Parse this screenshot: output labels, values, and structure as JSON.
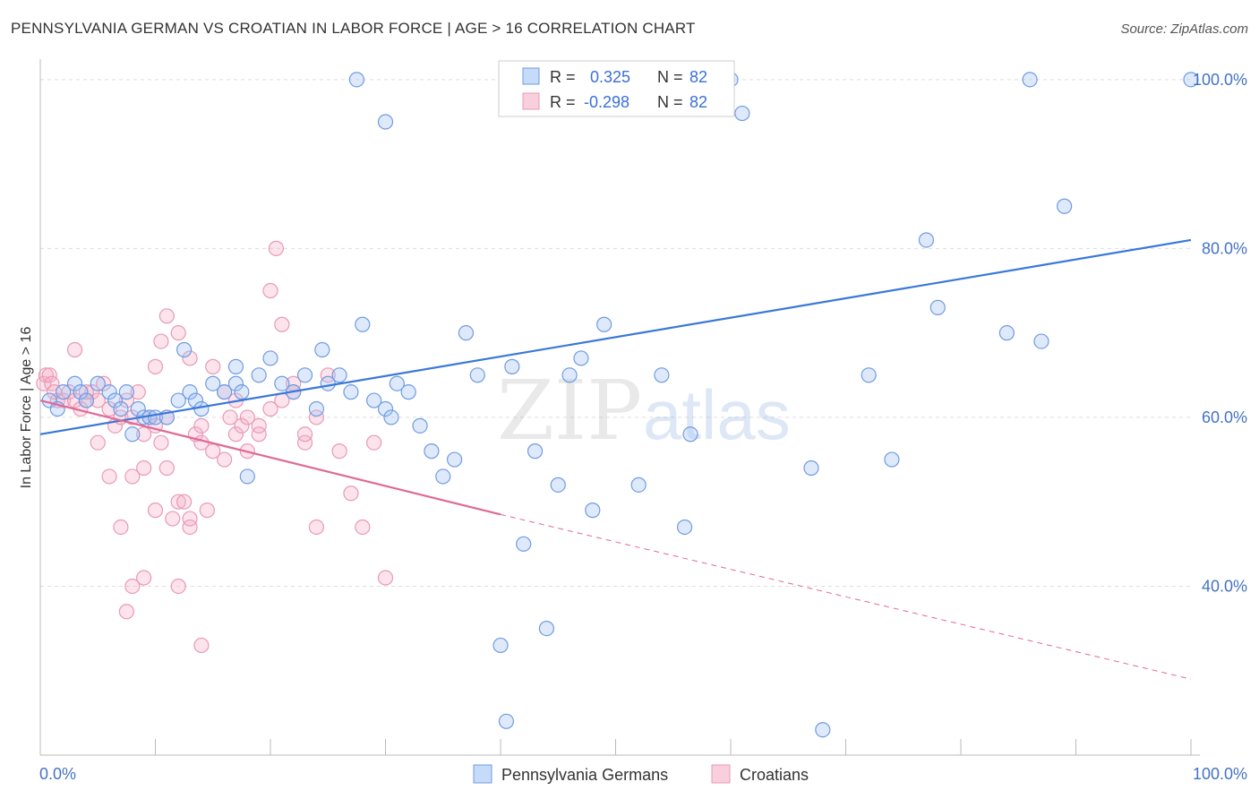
{
  "title": "PENNSYLVANIA GERMAN VS CROATIAN IN LABOR FORCE | AGE > 16 CORRELATION CHART",
  "source": "Source: ZipAtlas.com",
  "watermark": {
    "zip": "ZIP",
    "atlas": "atlas"
  },
  "colors": {
    "blue": "#3a78d8",
    "blue_fill": "rgba(160,195,245,0.35)",
    "blue_stroke": "#6f9be0",
    "pink": "#e06a95",
    "pink_fill": "rgba(245,175,200,0.35)",
    "pink_stroke": "#e89ab5",
    "grid": "#dddddd",
    "axis": "#bbbbbb"
  },
  "legend": {
    "r_label": "R =",
    "n_label": "N =",
    "series_a": {
      "r": "0.325",
      "n": "82"
    },
    "series_b": {
      "r": "-0.298",
      "n": "82"
    }
  },
  "bottom_legend": {
    "a": "Pennsylvania Germans",
    "b": "Croatians"
  },
  "chart_data": {
    "type": "scatter",
    "xlabel": "",
    "ylabel": "In Labor Force | Age > 16",
    "xlim": [
      0,
      100
    ],
    "ylim": [
      20,
      102
    ],
    "x_tick_labels": [
      "0.0%",
      "100.0%"
    ],
    "y_ticks": [
      40,
      60,
      80,
      100
    ],
    "y_tick_labels": [
      "40.0%",
      "60.0%",
      "80.0%",
      "100.0%"
    ],
    "grid": true,
    "legend_position": "top-center",
    "series": [
      {
        "name": "Pennsylvania Germans",
        "color": "blue",
        "trend": {
          "x0": 0,
          "y0": 58.0,
          "x1": 100,
          "y1": 81.0
        },
        "points": [
          [
            0.8,
            62
          ],
          [
            1.5,
            61
          ],
          [
            2,
            63
          ],
          [
            3,
            64
          ],
          [
            3.5,
            63
          ],
          [
            4,
            62
          ],
          [
            5,
            64
          ],
          [
            6,
            63
          ],
          [
            6.5,
            62
          ],
          [
            7,
            61
          ],
          [
            7.5,
            63
          ],
          [
            8,
            58
          ],
          [
            8.5,
            61
          ],
          [
            9,
            60
          ],
          [
            9.5,
            60
          ],
          [
            10,
            60
          ],
          [
            11,
            60
          ],
          [
            12,
            62
          ],
          [
            13,
            63
          ],
          [
            13.5,
            62
          ],
          [
            14,
            61
          ],
          [
            15,
            64
          ],
          [
            16,
            63
          ],
          [
            17,
            64
          ],
          [
            17.5,
            63
          ],
          [
            18,
            53
          ],
          [
            19,
            65
          ],
          [
            20,
            67
          ],
          [
            21,
            64
          ],
          [
            22,
            63
          ],
          [
            23,
            65
          ],
          [
            24,
            61
          ],
          [
            25,
            64
          ],
          [
            26,
            65
          ],
          [
            27,
            63
          ],
          [
            28,
            71
          ],
          [
            29,
            62
          ],
          [
            30,
            61
          ],
          [
            30.5,
            60
          ],
          [
            31,
            64
          ],
          [
            32,
            63
          ],
          [
            33,
            59
          ],
          [
            34,
            56
          ],
          [
            35,
            53
          ],
          [
            36,
            55
          ],
          [
            37,
            70
          ],
          [
            38,
            65
          ],
          [
            40,
            33
          ],
          [
            41,
            66
          ],
          [
            42,
            45
          ],
          [
            43,
            56
          ],
          [
            44,
            35
          ],
          [
            45,
            52
          ],
          [
            46,
            65
          ],
          [
            47,
            67
          ],
          [
            48,
            49
          ],
          [
            49,
            71
          ],
          [
            52,
            52
          ],
          [
            54,
            65
          ],
          [
            56,
            47
          ],
          [
            56.5,
            58
          ],
          [
            60,
            100
          ],
          [
            61,
            96
          ],
          [
            67,
            54
          ],
          [
            72,
            65
          ],
          [
            74,
            55
          ],
          [
            77,
            81
          ],
          [
            78,
            73
          ],
          [
            84,
            70
          ],
          [
            87,
            69
          ],
          [
            89,
            85
          ],
          [
            27.5,
            100
          ],
          [
            30,
            95
          ],
          [
            40.5,
            24
          ],
          [
            51,
            100
          ],
          [
            54,
            100
          ],
          [
            68,
            23
          ],
          [
            86,
            100
          ],
          [
            100,
            100
          ],
          [
            12.5,
            68
          ],
          [
            24.5,
            68
          ],
          [
            17,
            66
          ]
        ]
      },
      {
        "name": "Croatians",
        "color": "pink",
        "trend": {
          "x0": 0,
          "y0": 62.0,
          "x1": 40,
          "y1": 48.5
        },
        "trend_dashed": {
          "x0": 40,
          "y0": 48.5,
          "x1": 100,
          "y1": 29.0
        },
        "points": [
          [
            0.3,
            64
          ],
          [
            0.5,
            65
          ],
          [
            0.8,
            65
          ],
          [
            1,
            64
          ],
          [
            1.2,
            63
          ],
          [
            1.5,
            62
          ],
          [
            2,
            62
          ],
          [
            2.5,
            63
          ],
          [
            3,
            62
          ],
          [
            3.5,
            61
          ],
          [
            4,
            62
          ],
          [
            4.5,
            63
          ],
          [
            5,
            62
          ],
          [
            5.5,
            64
          ],
          [
            6,
            61
          ],
          [
            6.5,
            59
          ],
          [
            7,
            60
          ],
          [
            7.5,
            62
          ],
          [
            8,
            60
          ],
          [
            8.5,
            63
          ],
          [
            9,
            58
          ],
          [
            9.5,
            60
          ],
          [
            10,
            59
          ],
          [
            10.5,
            57
          ],
          [
            11,
            54
          ],
          [
            11.5,
            48
          ],
          [
            12,
            50
          ],
          [
            12.5,
            50
          ],
          [
            13,
            47
          ],
          [
            13.5,
            58
          ],
          [
            14,
            57
          ],
          [
            14.5,
            49
          ],
          [
            15,
            56
          ],
          [
            16,
            55
          ],
          [
            16.5,
            60
          ],
          [
            17,
            58
          ],
          [
            17.5,
            59
          ],
          [
            18,
            56
          ],
          [
            19,
            58
          ],
          [
            20,
            75
          ],
          [
            20.5,
            80
          ],
          [
            21,
            71
          ],
          [
            22,
            64
          ],
          [
            23,
            57
          ],
          [
            24,
            47
          ],
          [
            25,
            65
          ],
          [
            26,
            56
          ],
          [
            27,
            51
          ],
          [
            28,
            47
          ],
          [
            29,
            57
          ],
          [
            30,
            41
          ],
          [
            7.5,
            37
          ],
          [
            8,
            40
          ],
          [
            9,
            41
          ],
          [
            10,
            66
          ],
          [
            10.5,
            69
          ],
          [
            11,
            72
          ],
          [
            12,
            70
          ],
          [
            13,
            67
          ],
          [
            14,
            33
          ],
          [
            3,
            68
          ],
          [
            4,
            63
          ],
          [
            5,
            57
          ],
          [
            6,
            53
          ],
          [
            7,
            47
          ],
          [
            8,
            53
          ],
          [
            9,
            54
          ],
          [
            10,
            49
          ],
          [
            11,
            60
          ],
          [
            12,
            40
          ],
          [
            13,
            48
          ],
          [
            14,
            59
          ],
          [
            15,
            66
          ],
          [
            16,
            63
          ],
          [
            17,
            62
          ],
          [
            18,
            60
          ],
          [
            19,
            59
          ],
          [
            20,
            61
          ],
          [
            21,
            62
          ],
          [
            22,
            63
          ],
          [
            23,
            58
          ],
          [
            24,
            60
          ]
        ]
      }
    ]
  }
}
